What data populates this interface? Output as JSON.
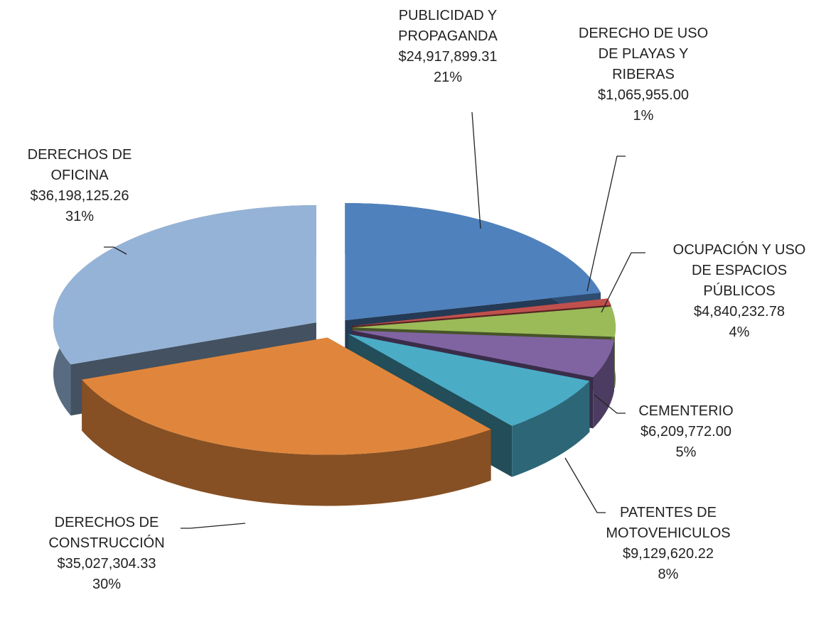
{
  "chart_data": {
    "type": "pie3d",
    "categories": [
      "PUBLICIDAD Y PROPAGANDA",
      "DERECHO DE USO DE PLAYAS Y RIBERAS",
      "OCUPACIÓN Y USO DE ESPACIOS PÚBLICOS",
      "CEMENTERIO",
      "PATENTES DE MOTOVEHICULOS",
      "DERECHOS DE CONSTRUCCIÓN",
      "DERECHOS DE OFICINA"
    ],
    "values": [
      24917899.31,
      1065955.0,
      4840232.78,
      6209772.0,
      9129620.22,
      35027304.33,
      36198125.26
    ],
    "value_labels": [
      "$24,917,899.31",
      "$1,065,955.00",
      "$4,840,232.78",
      "$6,209,772.00",
      "$9,129,620.22",
      "$35,027,304.33",
      "$36,198,125.26"
    ],
    "percent_labels": [
      "21%",
      "1%",
      "4%",
      "5%",
      "8%",
      "30%",
      "31%"
    ],
    "colors": [
      "#4f81bd",
      "#c0504d",
      "#9bbb59",
      "#8064a2",
      "#4bacc6",
      "#e0863c",
      "#95b3d7"
    ]
  }
}
